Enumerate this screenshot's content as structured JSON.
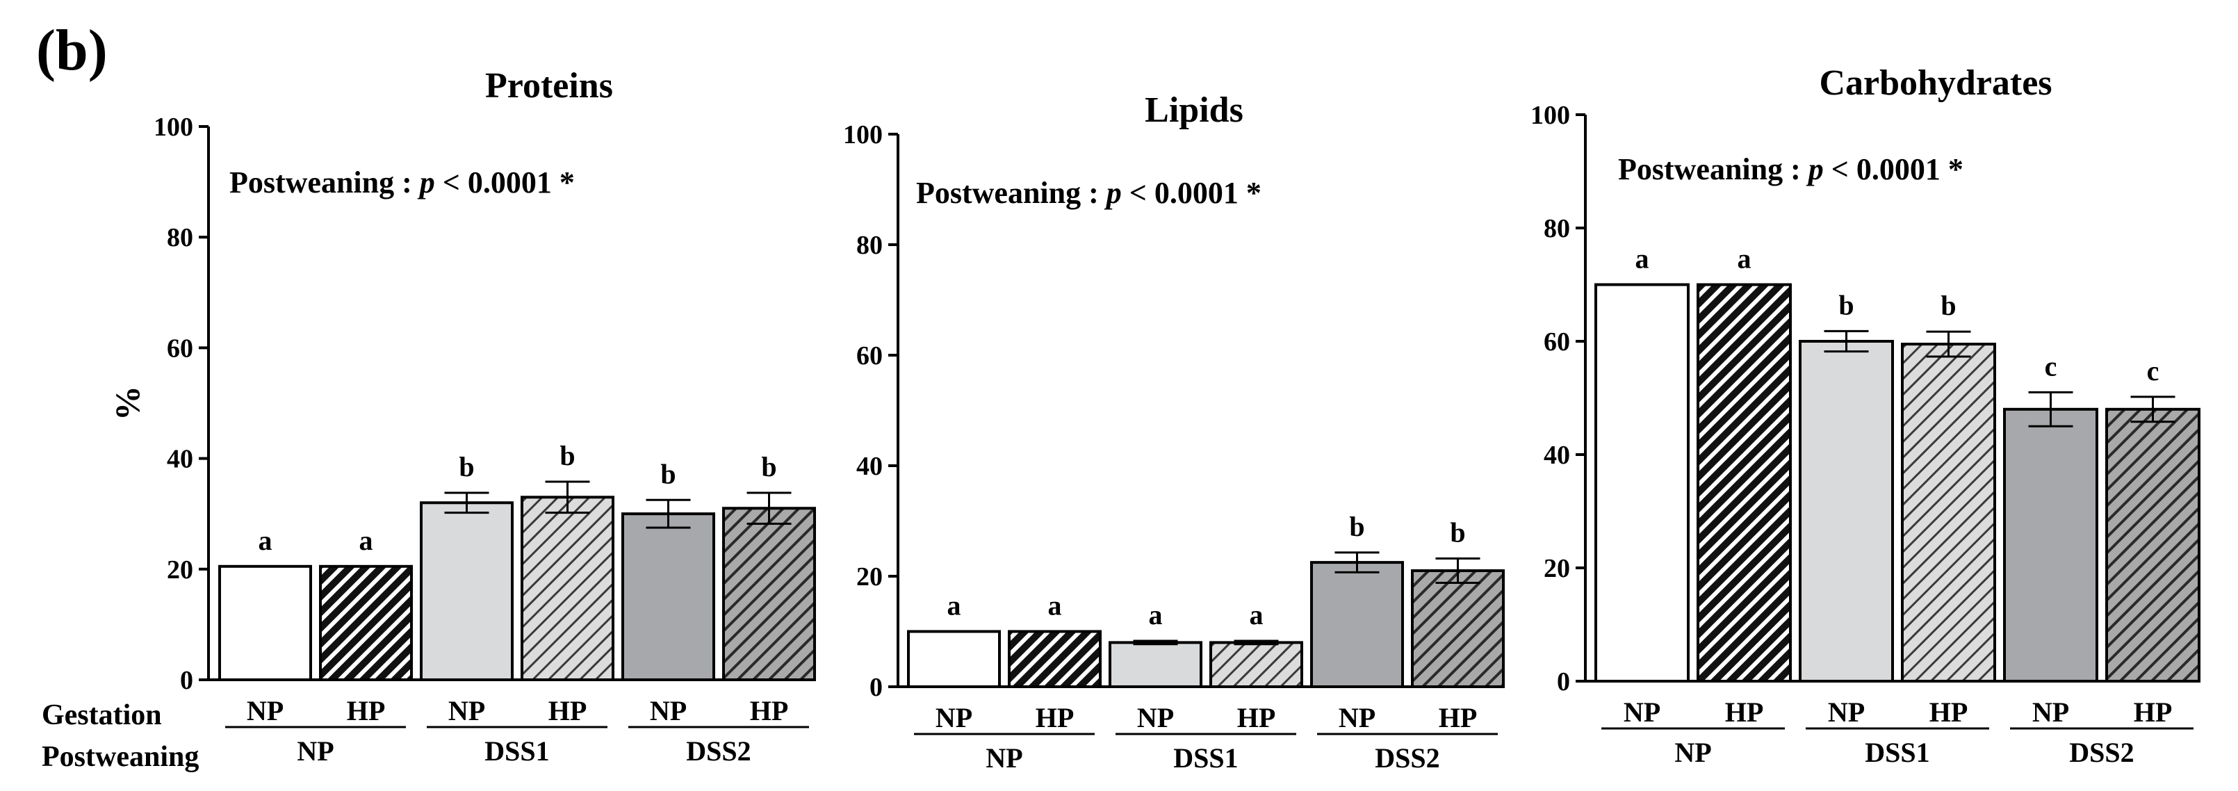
{
  "panel_label": "(b)",
  "row_labels": {
    "gestation": "Gestation",
    "postweaning": "Postweaning"
  },
  "chart_data": [
    {
      "type": "bar",
      "title": "Proteins",
      "ylabel": "%",
      "ylim": [
        0,
        100
      ],
      "yticks": [
        0,
        20,
        40,
        60,
        80,
        100
      ],
      "annotation": {
        "prefix": "Postweaning :",
        "p": "p",
        "value": "< 0.0001 *"
      },
      "gestation": [
        "NP",
        "HP",
        "NP",
        "HP",
        "NP",
        "HP"
      ],
      "postweaning": [
        "NP",
        "DSS1",
        "DSS2"
      ],
      "values": [
        20.5,
        20.5,
        32,
        33,
        30,
        31
      ],
      "errors": [
        0,
        0,
        1.8,
        2.8,
        2.5,
        2.8
      ],
      "letters": [
        "a",
        "a",
        "b",
        "b",
        "b",
        "b"
      ],
      "fills": [
        "#ffffff",
        "#1a1a1a",
        "#d9dadb",
        "#d9dadb",
        "#a7a8ab",
        "#a7a8ab"
      ],
      "patterns": [
        "none",
        "hatch-black",
        "none",
        "hatch-light",
        "none",
        "hatch-dark"
      ]
    },
    {
      "type": "bar",
      "title": "Lipids",
      "ylabel": "",
      "ylim": [
        0,
        100
      ],
      "yticks": [
        0,
        20,
        40,
        60,
        80,
        100
      ],
      "annotation": {
        "prefix": "Postweaning :",
        "p": "p",
        "value": "< 0.0001 *"
      },
      "gestation": [
        "NP",
        "HP",
        "NP",
        "HP",
        "NP",
        "HP"
      ],
      "postweaning": [
        "NP",
        "DSS1",
        "DSS2"
      ],
      "values": [
        10,
        10,
        8,
        8,
        22.5,
        21
      ],
      "errors": [
        0,
        0,
        0.3,
        0.3,
        1.8,
        2.2
      ],
      "letters": [
        "a",
        "a",
        "a",
        "a",
        "b",
        "b"
      ],
      "fills": [
        "#ffffff",
        "#1a1a1a",
        "#d9dadb",
        "#d9dadb",
        "#a7a8ab",
        "#a7a8ab"
      ],
      "patterns": [
        "none",
        "hatch-black",
        "none",
        "hatch-light",
        "none",
        "hatch-dark"
      ]
    },
    {
      "type": "bar",
      "title": "Carbohydrates",
      "ylabel": "",
      "ylim": [
        0,
        100
      ],
      "yticks": [
        0,
        20,
        40,
        60,
        80,
        100
      ],
      "annotation": {
        "prefix": "Postweaning :",
        "p": "p",
        "value": "< 0.0001 *"
      },
      "gestation": [
        "NP",
        "HP",
        "NP",
        "HP",
        "NP",
        "HP"
      ],
      "postweaning": [
        "NP",
        "DSS1",
        "DSS2"
      ],
      "values": [
        70,
        70,
        60,
        59.5,
        48,
        48
      ],
      "errors": [
        0,
        0,
        1.8,
        2.2,
        3,
        2.2
      ],
      "letters": [
        "a",
        "a",
        "b",
        "b",
        "c",
        "c"
      ],
      "fills": [
        "#ffffff",
        "#1a1a1a",
        "#d9dadb",
        "#d9dadb",
        "#a7a8ab",
        "#a7a8ab"
      ],
      "patterns": [
        "none",
        "hatch-black",
        "none",
        "hatch-light",
        "none",
        "hatch-dark"
      ]
    }
  ]
}
